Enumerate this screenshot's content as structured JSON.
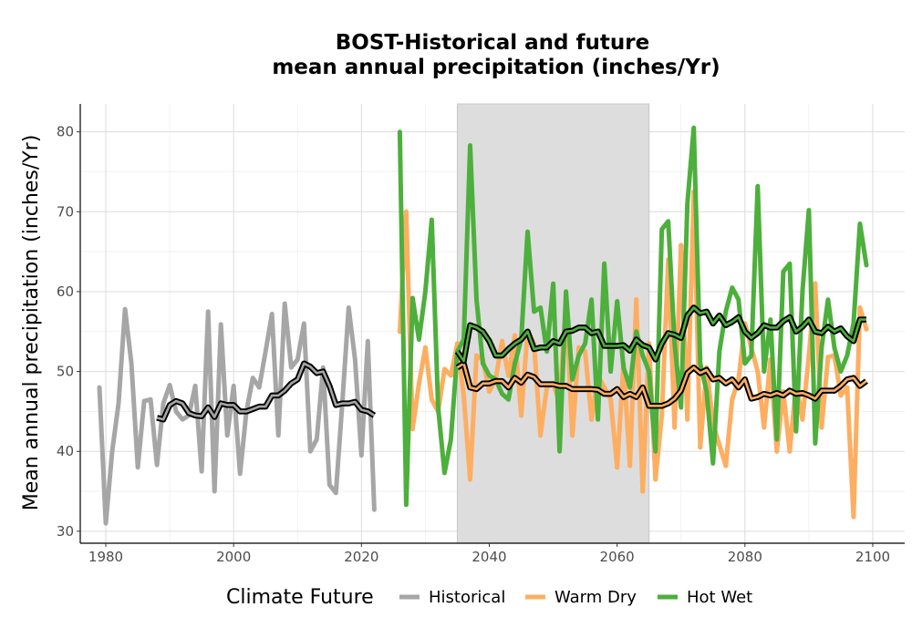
{
  "chart_data": {
    "type": "line",
    "title": "BOST-Historical and future\nmean annual precipitation (inches/Yr)",
    "title_lines": [
      "BOST-Historical and future",
      "mean annual precipitation (inches/Yr)"
    ],
    "xlabel": "",
    "ylabel": "Mean annual precipitation (inches/Yr)",
    "xlim": [
      1976,
      2105
    ],
    "ylim": [
      28.5,
      83.5
    ],
    "xticks": [
      1980,
      2000,
      2020,
      2040,
      2060,
      2080,
      2100
    ],
    "yticks": [
      30,
      40,
      50,
      60,
      70,
      80
    ],
    "grid": true,
    "shaded_period": [
      2035,
      2065
    ],
    "legend": {
      "title": "Climate Future",
      "position": "bottom",
      "entries": [
        "Historical",
        "Warm Dry",
        "Hot Wet"
      ]
    },
    "colors": {
      "Historical": "#a6a6a6",
      "Warm Dry": "#fdae61",
      "Hot Wet": "#4daf3c",
      "smooth_outline": "#000000",
      "shade": "#dddddd"
    },
    "series": [
      {
        "name": "Historical",
        "x": [
          1979,
          1980,
          1981,
          1982,
          1983,
          1984,
          1985,
          1986,
          1987,
          1988,
          1989,
          1990,
          1991,
          1992,
          1993,
          1994,
          1995,
          1996,
          1997,
          1998,
          1999,
          2000,
          2001,
          2002,
          2003,
          2004,
          2005,
          2006,
          2007,
          2008,
          2009,
          2010,
          2011,
          2012,
          2013,
          2014,
          2015,
          2016,
          2017,
          2018,
          2019,
          2020,
          2021,
          2022
        ],
        "y": [
          48.0,
          31.0,
          40.0,
          46.0,
          57.8,
          51.0,
          38.0,
          46.3,
          46.5,
          38.3,
          46.0,
          48.3,
          45.0,
          44.0,
          44.5,
          48.2,
          37.5,
          57.5,
          35.0,
          55.9,
          42.0,
          48.2,
          37.2,
          45.0,
          49.2,
          48.0,
          52.5,
          57.2,
          42.0,
          58.5,
          50.5,
          51.5,
          56.0,
          40.0,
          41.5,
          50.5,
          35.8,
          34.8,
          46.0,
          58.0,
          51.5,
          39.5,
          53.8,
          32.7
        ]
      },
      {
        "name": "Historical smooth",
        "x": [
          1988,
          1989,
          1990,
          1991,
          1992,
          1993,
          1994,
          1995,
          1996,
          1997,
          1998,
          1999,
          2000,
          2001,
          2002,
          2003,
          2004,
          2005,
          2006,
          2007,
          2008,
          2009,
          2010,
          2011,
          2012,
          2013,
          2014,
          2015,
          2016,
          2017,
          2018,
          2019,
          2020,
          2021,
          2022
        ],
        "y": [
          44.2,
          44.0,
          45.8,
          46.3,
          46.0,
          44.8,
          44.5,
          44.4,
          45.5,
          44.3,
          46.0,
          45.8,
          45.8,
          45.0,
          45.0,
          45.3,
          45.6,
          45.6,
          47.0,
          47.0,
          47.6,
          48.5,
          49.0,
          51.0,
          50.6,
          49.8,
          50.0,
          48.2,
          45.8,
          46.0,
          46.0,
          46.2,
          45.2,
          45.0,
          44.5
        ]
      },
      {
        "name": "Warm Dry",
        "x": [
          2026,
          2027,
          2028,
          2029,
          2030,
          2031,
          2032,
          2033,
          2034,
          2035,
          2036,
          2037,
          2038,
          2039,
          2040,
          2041,
          2042,
          2043,
          2044,
          2045,
          2046,
          2047,
          2048,
          2049,
          2050,
          2051,
          2052,
          2053,
          2054,
          2055,
          2056,
          2057,
          2058,
          2059,
          2060,
          2061,
          2062,
          2063,
          2064,
          2065,
          2066,
          2067,
          2068,
          2069,
          2070,
          2071,
          2072,
          2073,
          2074,
          2075,
          2076,
          2077,
          2078,
          2079,
          2080,
          2081,
          2082,
          2083,
          2084,
          2085,
          2086,
          2087,
          2088,
          2089,
          2090,
          2091,
          2092,
          2093,
          2094,
          2095,
          2096,
          2097,
          2098,
          2099
        ],
        "y": [
          55.0,
          70.0,
          42.8,
          48.5,
          53.0,
          46.5,
          45.0,
          50.3,
          49.5,
          53.5,
          47.0,
          36.5,
          52.0,
          51.5,
          47.5,
          49.0,
          53.8,
          49.5,
          54.5,
          44.5,
          55.0,
          53.5,
          42.0,
          48.0,
          48.5,
          46.0,
          58.8,
          42.0,
          53.0,
          52.5,
          44.0,
          49.5,
          48.0,
          46.5,
          38.0,
          51.0,
          38.2,
          59.0,
          35.0,
          53.5,
          36.5,
          44.5,
          64.0,
          43.0,
          65.8,
          44.0,
          72.5,
          40.5,
          50.5,
          43.5,
          40.8,
          38.2,
          46.5,
          49.0,
          56.0,
          53.0,
          50.0,
          43.0,
          51.5,
          40.0,
          47.5,
          40.0,
          48.5,
          44.0,
          52.0,
          61.0,
          43.0,
          51.8,
          52.0,
          47.0,
          48.0,
          31.8,
          58.0,
          55.3
        ]
      },
      {
        "name": "Warm Dry smooth",
        "x": [
          2035,
          2036,
          2037,
          2038,
          2039,
          2040,
          2041,
          2042,
          2043,
          2044,
          2045,
          2046,
          2047,
          2048,
          2049,
          2050,
          2051,
          2052,
          2053,
          2054,
          2055,
          2056,
          2057,
          2058,
          2059,
          2060,
          2061,
          2062,
          2063,
          2064,
          2065,
          2066,
          2067,
          2068,
          2069,
          2070,
          2071,
          2072,
          2073,
          2074,
          2075,
          2076,
          2077,
          2078,
          2079,
          2080,
          2081,
          2082,
          2083,
          2084,
          2085,
          2086,
          2087,
          2088,
          2089,
          2090,
          2091,
          2092,
          2093,
          2094,
          2095,
          2096,
          2097,
          2098,
          2099
        ],
        "y": [
          50.5,
          51.0,
          48.0,
          47.8,
          48.5,
          48.5,
          48.8,
          48.8,
          48.0,
          49.2,
          48.6,
          49.6,
          49.3,
          48.4,
          48.4,
          48.4,
          48.2,
          48.2,
          47.8,
          47.8,
          47.8,
          47.8,
          47.7,
          47.2,
          47.2,
          47.8,
          46.8,
          47.2,
          46.8,
          48.0,
          45.7,
          45.7,
          45.7,
          46.0,
          46.6,
          47.6,
          49.8,
          50.5,
          49.8,
          50.2,
          49.0,
          49.2,
          48.5,
          49.0,
          48.0,
          49.0,
          46.6,
          46.8,
          47.2,
          47.0,
          47.3,
          47.0,
          47.6,
          47.2,
          47.3,
          47.0,
          46.6,
          47.6,
          47.6,
          47.6,
          48.2,
          49.0,
          49.2,
          48.2,
          48.8
        ]
      },
      {
        "name": "Hot Wet",
        "x": [
          2026,
          2027,
          2028,
          2029,
          2030,
          2031,
          2032,
          2033,
          2034,
          2035,
          2036,
          2037,
          2038,
          2039,
          2040,
          2041,
          2042,
          2043,
          2044,
          2045,
          2046,
          2047,
          2048,
          2049,
          2050,
          2051,
          2052,
          2053,
          2054,
          2055,
          2056,
          2057,
          2058,
          2059,
          2060,
          2061,
          2062,
          2063,
          2064,
          2065,
          2066,
          2067,
          2068,
          2069,
          2070,
          2071,
          2072,
          2073,
          2074,
          2075,
          2076,
          2077,
          2078,
          2079,
          2080,
          2081,
          2082,
          2083,
          2084,
          2085,
          2086,
          2087,
          2088,
          2089,
          2090,
          2091,
          2092,
          2093,
          2094,
          2095,
          2096,
          2097,
          2098,
          2099
        ],
        "y": [
          80.0,
          33.3,
          59.2,
          54.0,
          60.0,
          69.0,
          45.5,
          37.3,
          41.5,
          52.5,
          54.0,
          78.3,
          59.0,
          51.0,
          49.5,
          49.0,
          47.2,
          46.5,
          51.0,
          54.0,
          67.5,
          57.5,
          58.0,
          52.5,
          61.0,
          40.0,
          60.0,
          49.0,
          52.0,
          53.5,
          59.0,
          44.0,
          63.5,
          50.0,
          58.8,
          50.5,
          48.0,
          55.0,
          52.0,
          50.0,
          40.0,
          67.8,
          68.8,
          53.5,
          45.5,
          71.0,
          80.5,
          51.0,
          47.5,
          38.5,
          52.5,
          57.5,
          60.5,
          59.0,
          51.0,
          52.0,
          73.2,
          50.0,
          56.5,
          41.5,
          62.5,
          63.5,
          42.5,
          60.0,
          70.2,
          41.0,
          53.0,
          59.0,
          53.0,
          50.0,
          52.0,
          56.0,
          68.5,
          63.3
        ]
      },
      {
        "name": "Hot Wet smooth",
        "x": [
          2035,
          2036,
          2037,
          2038,
          2039,
          2040,
          2041,
          2042,
          2043,
          2044,
          2045,
          2046,
          2047,
          2048,
          2049,
          2050,
          2051,
          2052,
          2053,
          2054,
          2055,
          2056,
          2057,
          2058,
          2059,
          2060,
          2061,
          2062,
          2063,
          2064,
          2065,
          2066,
          2067,
          2068,
          2069,
          2070,
          2071,
          2072,
          2073,
          2074,
          2075,
          2076,
          2077,
          2078,
          2079,
          2080,
          2081,
          2082,
          2083,
          2084,
          2085,
          2086,
          2087,
          2088,
          2089,
          2090,
          2091,
          2092,
          2093,
          2094,
          2095,
          2096,
          2097,
          2098,
          2099
        ],
        "y": [
          52.5,
          51.3,
          55.8,
          55.5,
          55.0,
          53.8,
          52.0,
          52.0,
          52.8,
          53.5,
          54.0,
          55.0,
          52.8,
          53.0,
          53.0,
          53.8,
          53.5,
          55.0,
          55.1,
          55.5,
          55.5,
          54.8,
          55.0,
          53.2,
          53.2,
          53.2,
          53.3,
          52.6,
          54.0,
          53.3,
          53.0,
          51.5,
          53.5,
          54.8,
          54.6,
          54.2,
          57.0,
          58.0,
          57.3,
          57.5,
          56.0,
          57.0,
          55.8,
          56.2,
          56.8,
          55.0,
          54.2,
          54.8,
          55.8,
          55.5,
          55.5,
          56.3,
          56.8,
          55.0,
          55.6,
          56.5,
          55.0,
          54.8,
          55.6,
          55.0,
          55.4,
          54.4,
          53.8,
          56.5,
          56.5
        ]
      }
    ]
  }
}
